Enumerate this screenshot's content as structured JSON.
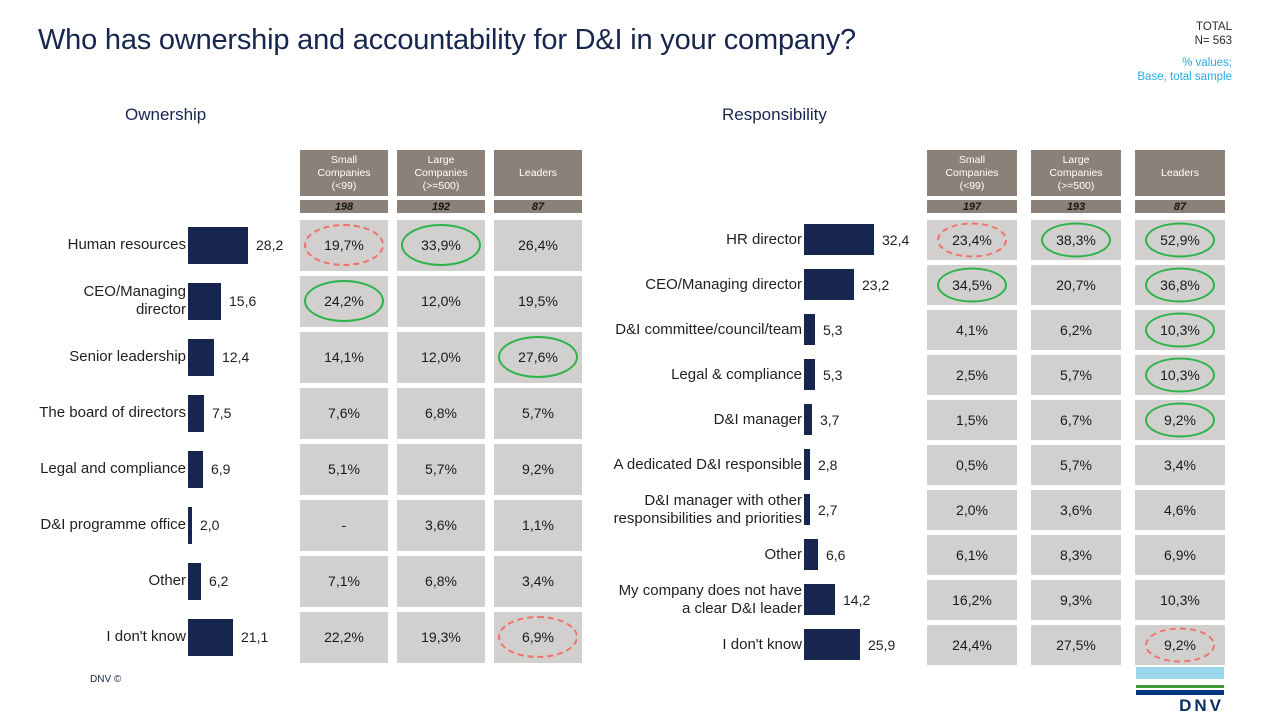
{
  "title": "Who has ownership and accountability for D&I in your company?",
  "meta": {
    "total_label": "TOTAL",
    "n_label": "N= 563",
    "note_line1": "% values;",
    "note_line2": "Base, total sample"
  },
  "footer": {
    "copyright": "DNV ©",
    "logo_text": "DNV"
  },
  "colors": {
    "navy": "#16264E",
    "taupe": "#8B8178",
    "cellgray": "#D1D0CE",
    "green": "#2DB34A",
    "red": "#F0726B",
    "cyan": "#29ABE2",
    "sky": "#9BD7EC",
    "lgreen": "#3F9C35",
    "seablue": "#00357F"
  },
  "chart_data": [
    {
      "type": "bar",
      "orientation": "horizontal",
      "title": "Ownership",
      "xlim": [
        0,
        35
      ],
      "columns": [
        {
          "header_lines": [
            "Small",
            "Companies",
            "(<99)"
          ],
          "n": "198"
        },
        {
          "header_lines": [
            "Large",
            "Companies",
            "(>=500)"
          ],
          "n": "192"
        },
        {
          "header_lines": [
            "Leaders"
          ],
          "n": "87"
        }
      ],
      "rows": [
        {
          "label": "Human resources",
          "value": 28.2,
          "value_label": "28,2",
          "cells": [
            {
              "text": "19,7%",
              "mark": "red"
            },
            {
              "text": "33,9%",
              "mark": "green"
            },
            {
              "text": "26,4%",
              "mark": null
            }
          ]
        },
        {
          "label": "CEO/Managing director",
          "value": 15.6,
          "value_label": "15,6",
          "cells": [
            {
              "text": "24,2%",
              "mark": "green"
            },
            {
              "text": "12,0%",
              "mark": null
            },
            {
              "text": "19,5%",
              "mark": null
            }
          ]
        },
        {
          "label": "Senior leadership",
          "value": 12.4,
          "value_label": "12,4",
          "cells": [
            {
              "text": "14,1%",
              "mark": null
            },
            {
              "text": "12,0%",
              "mark": null
            },
            {
              "text": "27,6%",
              "mark": "green"
            }
          ]
        },
        {
          "label": "The board of directors",
          "value": 7.5,
          "value_label": "7,5",
          "cells": [
            {
              "text": "7,6%",
              "mark": null
            },
            {
              "text": "6,8%",
              "mark": null
            },
            {
              "text": "5,7%",
              "mark": null
            }
          ]
        },
        {
          "label": "Legal and compliance",
          "value": 6.9,
          "value_label": "6,9",
          "cells": [
            {
              "text": "5,1%",
              "mark": null
            },
            {
              "text": "5,7%",
              "mark": null
            },
            {
              "text": "9,2%",
              "mark": null
            }
          ]
        },
        {
          "label": "D&I programme office",
          "value": 2.0,
          "value_label": "2,0",
          "cells": [
            {
              "text": "-",
              "mark": null
            },
            {
              "text": "3,6%",
              "mark": null
            },
            {
              "text": "1,1%",
              "mark": null
            }
          ]
        },
        {
          "label": "Other",
          "value": 6.2,
          "value_label": "6,2",
          "cells": [
            {
              "text": "7,1%",
              "mark": null
            },
            {
              "text": "6,8%",
              "mark": null
            },
            {
              "text": "3,4%",
              "mark": null
            }
          ]
        },
        {
          "label": "I don't know",
          "value": 21.1,
          "value_label": "21,1",
          "cells": [
            {
              "text": "22,2%",
              "mark": null
            },
            {
              "text": "19,3%",
              "mark": null
            },
            {
              "text": "6,9%",
              "mark": "red"
            }
          ]
        }
      ]
    },
    {
      "type": "bar",
      "orientation": "horizontal",
      "title": "Responsibility",
      "xlim": [
        0,
        35
      ],
      "columns": [
        {
          "header_lines": [
            "Small",
            "Companies",
            "(<99)"
          ],
          "n": "197"
        },
        {
          "header_lines": [
            "Large",
            "Companies",
            "(>=500)"
          ],
          "n": "193"
        },
        {
          "header_lines": [
            "Leaders"
          ],
          "n": "87"
        }
      ],
      "rows": [
        {
          "label": "HR director",
          "value": 32.4,
          "value_label": "32,4",
          "cells": [
            {
              "text": "23,4%",
              "mark": "red"
            },
            {
              "text": "38,3%",
              "mark": "green"
            },
            {
              "text": "52,9%",
              "mark": "green"
            }
          ]
        },
        {
          "label": "CEO/Managing director",
          "value": 23.2,
          "value_label": "23,2",
          "cells": [
            {
              "text": "34,5%",
              "mark": "green"
            },
            {
              "text": "20,7%",
              "mark": null
            },
            {
              "text": "36,8%",
              "mark": "green"
            }
          ]
        },
        {
          "label": "D&I committee/council/team",
          "value": 5.3,
          "value_label": "5,3",
          "cells": [
            {
              "text": "4,1%",
              "mark": null
            },
            {
              "text": "6,2%",
              "mark": null
            },
            {
              "text": "10,3%",
              "mark": "green"
            }
          ]
        },
        {
          "label": "Legal & compliance",
          "value": 5.3,
          "value_label": "5,3",
          "cells": [
            {
              "text": "2,5%",
              "mark": null
            },
            {
              "text": "5,7%",
              "mark": null
            },
            {
              "text": "10,3%",
              "mark": "green"
            }
          ]
        },
        {
          "label": "D&I manager",
          "value": 3.7,
          "value_label": "3,7",
          "cells": [
            {
              "text": "1,5%",
              "mark": null
            },
            {
              "text": "6,7%",
              "mark": null
            },
            {
              "text": "9,2%",
              "mark": "green"
            }
          ]
        },
        {
          "label": "A dedicated D&I responsible",
          "value": 2.8,
          "value_label": "2,8",
          "cells": [
            {
              "text": "0,5%",
              "mark": null
            },
            {
              "text": "5,7%",
              "mark": null
            },
            {
              "text": "3,4%",
              "mark": null
            }
          ]
        },
        {
          "label": "D&I manager with other\nresponsibilities and priorities",
          "value": 2.7,
          "value_label": "2,7",
          "cells": [
            {
              "text": "2,0%",
              "mark": null
            },
            {
              "text": "3,6%",
              "mark": null
            },
            {
              "text": "4,6%",
              "mark": null
            }
          ]
        },
        {
          "label": "Other",
          "value": 6.6,
          "value_label": "6,6",
          "cells": [
            {
              "text": "6,1%",
              "mark": null
            },
            {
              "text": "8,3%",
              "mark": null
            },
            {
              "text": "6,9%",
              "mark": null
            }
          ]
        },
        {
          "label": "My company does not have\na clear D&I leader",
          "value": 14.2,
          "value_label": "14,2",
          "cells": [
            {
              "text": "16,2%",
              "mark": null
            },
            {
              "text": "9,3%",
              "mark": null
            },
            {
              "text": "10,3%",
              "mark": null
            }
          ]
        },
        {
          "label": "I don't know",
          "value": 25.9,
          "value_label": "25,9",
          "cells": [
            {
              "text": "24,4%",
              "mark": null
            },
            {
              "text": "27,5%",
              "mark": null
            },
            {
              "text": "9,2%",
              "mark": "red"
            }
          ]
        }
      ]
    }
  ]
}
